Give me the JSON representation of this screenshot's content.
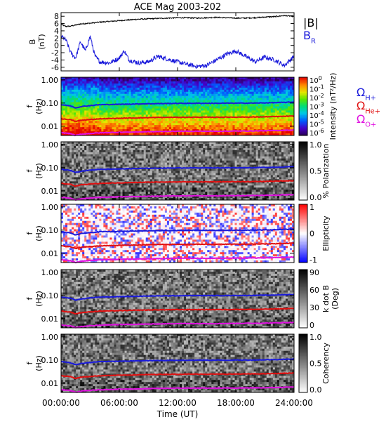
{
  "chart_data": {
    "title": "ACE Mag 2003-202",
    "xlabel": "Time (UT)",
    "x_ticks": [
      "00:00:00",
      "06:00:00",
      "12:00:00",
      "18:00:00",
      "24:00:00"
    ],
    "x_range_hours": [
      0,
      24
    ],
    "panels": [
      {
        "type": "line",
        "ylabel_line1": "B",
        "ylabel_line2": "(nT)",
        "ylim": [
          -7,
          9
        ],
        "y_ticks": [
          "8",
          "6",
          "4",
          "2",
          "0",
          "-2",
          "-4",
          "-6"
        ],
        "y_tick_values": [
          8,
          6,
          4,
          2,
          0,
          -2,
          -4,
          -6
        ],
        "legend": [
          {
            "label": "|B|",
            "color": "#000000"
          },
          {
            "label": "B",
            "sub": "R",
            "color": "#1a1adb"
          }
        ],
        "series": [
          {
            "name": "|B|",
            "color": "#000000",
            "x": [
              0,
              0.5,
              1,
              1.5,
              2,
              2.5,
              3,
              4,
              5,
              6,
              7,
              8,
              9,
              10,
              11,
              12,
              13,
              14,
              15,
              16,
              17,
              18,
              19,
              20,
              21,
              22,
              23,
              24
            ],
            "y": [
              5.8,
              5.2,
              5.3,
              5.6,
              5.9,
              6.0,
              6.1,
              6.4,
              6.6,
              6.8,
              7.0,
              7.2,
              7.3,
              7.4,
              7.5,
              7.6,
              7.6,
              7.5,
              7.6,
              7.7,
              7.6,
              7.5,
              7.5,
              7.6,
              7.8,
              7.9,
              8.2,
              8.0
            ]
          },
          {
            "name": "B_R",
            "color": "#1a1adb",
            "x": [
              0,
              0.5,
              1,
              1.5,
              2,
              2.5,
              3,
              3.5,
              4,
              5,
              6,
              6.5,
              7,
              8,
              9,
              10,
              11,
              12,
              13,
              14,
              15,
              16,
              17,
              18,
              19,
              20,
              21,
              22,
              23,
              24
            ],
            "y": [
              2.5,
              1.5,
              -2.0,
              -3.5,
              1.0,
              -1.5,
              2.5,
              -3.0,
              -4.5,
              -4.8,
              -3.5,
              -1.5,
              -4.0,
              -4.8,
              -4.5,
              -3.0,
              -3.8,
              -4.5,
              -5.2,
              -5.8,
              -5.5,
              -4.0,
              -2.5,
              -1.5,
              -3.0,
              -4.5,
              -3.2,
              -4.0,
              -5.5,
              -3.0
            ]
          }
        ]
      },
      {
        "type": "heatmap",
        "ylabel_line1": "f",
        "ylabel_line2": "(Hz)",
        "y_scale": "log",
        "ylim": [
          0.004,
          1.3
        ],
        "y_ticks": [
          "1.00",
          "0.10",
          "0.01"
        ],
        "y_tick_values": [
          1.0,
          0.1,
          0.01
        ],
        "colorbar": {
          "colormap": "rainbow",
          "label": "Intensity (nT²/Hz)",
          "ticks": [
            {
              "base": "10",
              "exp": "0"
            },
            {
              "base": "10",
              "exp": "-1"
            },
            {
              "base": "10",
              "exp": "-2"
            },
            {
              "base": "10",
              "exp": "-3"
            },
            {
              "base": "10",
              "exp": "-4"
            },
            {
              "base": "10",
              "exp": "-5"
            },
            {
              "base": "10",
              "exp": "-6"
            }
          ]
        },
        "legend": [
          {
            "label": "Ω",
            "sub": "H+",
            "color": "#1a1adb"
          },
          {
            "label": "Ω",
            "sub": "He+",
            "color": "#e01010"
          },
          {
            "label": "Ω",
            "sub": "O+",
            "color": "#e010e0"
          }
        ]
      },
      {
        "type": "heatmap",
        "ylabel_line1": "f",
        "ylabel_line2": "(Hz)",
        "y_scale": "log",
        "ylim": [
          0.004,
          1.3
        ],
        "y_ticks": [
          "1.00",
          "0.10",
          "0.01"
        ],
        "y_tick_values": [
          1.0,
          0.1,
          0.01
        ],
        "colorbar": {
          "colormap": "gray",
          "label": "% Polarization",
          "ticks": [
            "1.0",
            "0.5",
            "0.0"
          ]
        }
      },
      {
        "type": "heatmap",
        "ylabel_line1": "f",
        "ylabel_line2": "(Hz)",
        "y_scale": "log",
        "ylim": [
          0.004,
          1.3
        ],
        "y_ticks": [
          "1.00",
          "0.10",
          "0.01"
        ],
        "y_tick_values": [
          1.0,
          0.1,
          0.01
        ],
        "colorbar": {
          "colormap": "blue-white-red",
          "label": "Ellipticity",
          "ticks": [
            "1",
            "0",
            "-1"
          ]
        }
      },
      {
        "type": "heatmap",
        "ylabel_line1": "f",
        "ylabel_line2": "(Hz)",
        "y_scale": "log",
        "ylim": [
          0.004,
          1.3
        ],
        "y_ticks": [
          "1.00",
          "0.10",
          "0.01"
        ],
        "y_tick_values": [
          1.0,
          0.1,
          0.01
        ],
        "colorbar": {
          "colormap": "gray",
          "label": "k dot B",
          "label2": "(Deg)",
          "ticks": [
            "90",
            "60",
            "30",
            "0"
          ]
        }
      },
      {
        "type": "heatmap",
        "ylabel_line1": "f",
        "ylabel_line2": "(Hz)",
        "y_scale": "log",
        "ylim": [
          0.004,
          1.3
        ],
        "y_ticks": [
          "1.00",
          "0.10",
          "0.01"
        ],
        "y_tick_values": [
          1.0,
          0.1,
          0.01
        ],
        "colorbar": {
          "colormap": "gray",
          "label": "Coherency",
          "ticks": [
            "1.0",
            "0.5",
            "0.0"
          ]
        }
      }
    ],
    "gyro_lines": [
      {
        "name": "Omega H+",
        "color": "#1a1adb",
        "x": [
          0,
          1,
          1.5,
          2,
          3,
          4,
          6,
          8,
          10,
          12,
          14,
          16,
          18,
          20,
          22,
          24
        ],
        "y": [
          0.085,
          0.075,
          0.062,
          0.07,
          0.078,
          0.085,
          0.088,
          0.092,
          0.095,
          0.097,
          0.098,
          0.098,
          0.099,
          0.1,
          0.104,
          0.11
        ]
      },
      {
        "name": "Omega He+",
        "color": "#e01010",
        "x": [
          0,
          1,
          1.5,
          2,
          3,
          4,
          6,
          8,
          10,
          12,
          14,
          16,
          18,
          20,
          22,
          24
        ],
        "y": [
          0.021,
          0.019,
          0.016,
          0.018,
          0.0195,
          0.021,
          0.022,
          0.023,
          0.024,
          0.0243,
          0.0245,
          0.0245,
          0.0248,
          0.025,
          0.026,
          0.0275
        ]
      },
      {
        "name": "Omega O+",
        "color": "#e010e0",
        "x": [
          0,
          1,
          1.5,
          2,
          3,
          4,
          6,
          8,
          10,
          12,
          14,
          16,
          18,
          20,
          22,
          24
        ],
        "y": [
          0.0053,
          0.0048,
          0.004,
          0.0045,
          0.0049,
          0.0052,
          0.0055,
          0.0057,
          0.0059,
          0.0061,
          0.0061,
          0.0061,
          0.0062,
          0.0063,
          0.0065,
          0.0069
        ]
      }
    ]
  }
}
